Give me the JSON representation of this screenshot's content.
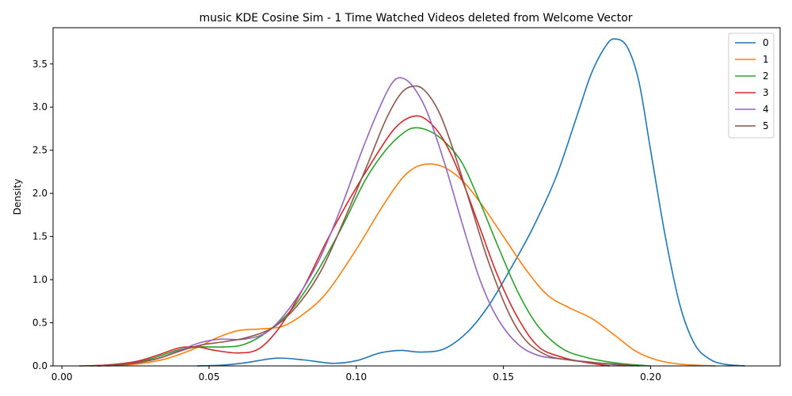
{
  "chart_data": {
    "type": "line",
    "title": "music KDE Cosine Sim - 1 Time Watched Videos deleted from Welcome Vector",
    "xlabel": "",
    "ylabel": "Density",
    "xlim": [
      -0.003,
      0.244
    ],
    "ylim": [
      0,
      3.92
    ],
    "x_ticks": [
      0.0,
      0.05,
      0.1,
      0.15,
      0.2
    ],
    "x_tick_labels": [
      "0.00",
      "0.05",
      "0.10",
      "0.15",
      "0.20"
    ],
    "y_ticks": [
      0.0,
      0.5,
      1.0,
      1.5,
      2.0,
      2.5,
      3.0,
      3.5
    ],
    "y_tick_labels": [
      "0.0",
      "0.5",
      "1.0",
      "1.5",
      "2.0",
      "2.5",
      "3.0",
      "3.5"
    ],
    "grid": false,
    "legend_position": "top-right",
    "series": [
      {
        "name": "0",
        "color": "#1f77b4",
        "points": [
          [
            0.046,
            0.0
          ],
          [
            0.055,
            0.01
          ],
          [
            0.063,
            0.04
          ],
          [
            0.073,
            0.09
          ],
          [
            0.082,
            0.07
          ],
          [
            0.092,
            0.03
          ],
          [
            0.1,
            0.06
          ],
          [
            0.108,
            0.15
          ],
          [
            0.115,
            0.18
          ],
          [
            0.122,
            0.16
          ],
          [
            0.13,
            0.2
          ],
          [
            0.138,
            0.4
          ],
          [
            0.145,
            0.7
          ],
          [
            0.152,
            1.1
          ],
          [
            0.16,
            1.6
          ],
          [
            0.168,
            2.2
          ],
          [
            0.175,
            2.9
          ],
          [
            0.18,
            3.4
          ],
          [
            0.185,
            3.72
          ],
          [
            0.188,
            3.79
          ],
          [
            0.192,
            3.7
          ],
          [
            0.196,
            3.3
          ],
          [
            0.2,
            2.5
          ],
          [
            0.205,
            1.5
          ],
          [
            0.21,
            0.7
          ],
          [
            0.215,
            0.25
          ],
          [
            0.22,
            0.08
          ],
          [
            0.225,
            0.02
          ],
          [
            0.232,
            0.0
          ]
        ]
      },
      {
        "name": "1",
        "color": "#ff7f0e",
        "points": [
          [
            0.015,
            0.0
          ],
          [
            0.025,
            0.02
          ],
          [
            0.035,
            0.08
          ],
          [
            0.045,
            0.2
          ],
          [
            0.053,
            0.33
          ],
          [
            0.06,
            0.41
          ],
          [
            0.068,
            0.43
          ],
          [
            0.075,
            0.46
          ],
          [
            0.082,
            0.6
          ],
          [
            0.09,
            0.85
          ],
          [
            0.1,
            1.35
          ],
          [
            0.108,
            1.8
          ],
          [
            0.115,
            2.15
          ],
          [
            0.12,
            2.3
          ],
          [
            0.125,
            2.34
          ],
          [
            0.13,
            2.3
          ],
          [
            0.136,
            2.15
          ],
          [
            0.142,
            1.9
          ],
          [
            0.15,
            1.5
          ],
          [
            0.158,
            1.1
          ],
          [
            0.165,
            0.82
          ],
          [
            0.172,
            0.68
          ],
          [
            0.18,
            0.55
          ],
          [
            0.188,
            0.35
          ],
          [
            0.195,
            0.17
          ],
          [
            0.202,
            0.07
          ],
          [
            0.21,
            0.02
          ],
          [
            0.222,
            0.0
          ]
        ]
      },
      {
        "name": "2",
        "color": "#2ca02c",
        "points": [
          [
            0.01,
            0.0
          ],
          [
            0.02,
            0.02
          ],
          [
            0.03,
            0.08
          ],
          [
            0.04,
            0.19
          ],
          [
            0.047,
            0.22
          ],
          [
            0.055,
            0.22
          ],
          [
            0.062,
            0.25
          ],
          [
            0.07,
            0.4
          ],
          [
            0.078,
            0.65
          ],
          [
            0.086,
            1.05
          ],
          [
            0.095,
            1.6
          ],
          [
            0.103,
            2.15
          ],
          [
            0.11,
            2.5
          ],
          [
            0.116,
            2.7
          ],
          [
            0.12,
            2.76
          ],
          [
            0.125,
            2.72
          ],
          [
            0.13,
            2.6
          ],
          [
            0.136,
            2.35
          ],
          [
            0.142,
            1.9
          ],
          [
            0.148,
            1.4
          ],
          [
            0.155,
            0.85
          ],
          [
            0.162,
            0.45
          ],
          [
            0.17,
            0.2
          ],
          [
            0.178,
            0.1
          ],
          [
            0.185,
            0.05
          ],
          [
            0.192,
            0.02
          ],
          [
            0.2,
            0.0
          ]
        ]
      },
      {
        "name": "3",
        "color": "#d62728",
        "points": [
          [
            0.006,
            0.0
          ],
          [
            0.015,
            0.01
          ],
          [
            0.025,
            0.05
          ],
          [
            0.033,
            0.13
          ],
          [
            0.04,
            0.21
          ],
          [
            0.046,
            0.22
          ],
          [
            0.052,
            0.18
          ],
          [
            0.06,
            0.15
          ],
          [
            0.067,
            0.2
          ],
          [
            0.074,
            0.45
          ],
          [
            0.082,
            0.9
          ],
          [
            0.09,
            1.45
          ],
          [
            0.098,
            1.95
          ],
          [
            0.106,
            2.4
          ],
          [
            0.113,
            2.75
          ],
          [
            0.119,
            2.89
          ],
          [
            0.124,
            2.85
          ],
          [
            0.13,
            2.6
          ],
          [
            0.136,
            2.15
          ],
          [
            0.142,
            1.6
          ],
          [
            0.148,
            1.05
          ],
          [
            0.155,
            0.55
          ],
          [
            0.162,
            0.22
          ],
          [
            0.17,
            0.1
          ],
          [
            0.178,
            0.04
          ],
          [
            0.186,
            0.0
          ]
        ]
      },
      {
        "name": "4",
        "color": "#9467bd",
        "points": [
          [
            0.012,
            0.0
          ],
          [
            0.022,
            0.02
          ],
          [
            0.032,
            0.08
          ],
          [
            0.04,
            0.18
          ],
          [
            0.047,
            0.27
          ],
          [
            0.054,
            0.31
          ],
          [
            0.062,
            0.31
          ],
          [
            0.07,
            0.4
          ],
          [
            0.078,
            0.7
          ],
          [
            0.087,
            1.2
          ],
          [
            0.095,
            1.85
          ],
          [
            0.102,
            2.5
          ],
          [
            0.108,
            3.0
          ],
          [
            0.112,
            3.27
          ],
          [
            0.115,
            3.34
          ],
          [
            0.119,
            3.25
          ],
          [
            0.124,
            2.95
          ],
          [
            0.13,
            2.35
          ],
          [
            0.136,
            1.65
          ],
          [
            0.142,
            1.0
          ],
          [
            0.148,
            0.55
          ],
          [
            0.155,
            0.25
          ],
          [
            0.162,
            0.12
          ],
          [
            0.17,
            0.08
          ],
          [
            0.178,
            0.05
          ],
          [
            0.186,
            0.02
          ],
          [
            0.194,
            0.0
          ]
        ]
      },
      {
        "name": "5",
        "color": "#8c564b",
        "points": [
          [
            0.012,
            0.0
          ],
          [
            0.022,
            0.02
          ],
          [
            0.032,
            0.08
          ],
          [
            0.04,
            0.17
          ],
          [
            0.047,
            0.24
          ],
          [
            0.055,
            0.28
          ],
          [
            0.063,
            0.33
          ],
          [
            0.072,
            0.45
          ],
          [
            0.08,
            0.7
          ],
          [
            0.088,
            1.1
          ],
          [
            0.096,
            1.7
          ],
          [
            0.104,
            2.35
          ],
          [
            0.11,
            2.85
          ],
          [
            0.115,
            3.15
          ],
          [
            0.119,
            3.24
          ],
          [
            0.123,
            3.2
          ],
          [
            0.128,
            2.95
          ],
          [
            0.133,
            2.5
          ],
          [
            0.139,
            1.85
          ],
          [
            0.145,
            1.2
          ],
          [
            0.152,
            0.6
          ],
          [
            0.158,
            0.28
          ],
          [
            0.165,
            0.12
          ],
          [
            0.172,
            0.07
          ],
          [
            0.18,
            0.04
          ],
          [
            0.188,
            0.02
          ],
          [
            0.196,
            0.0
          ]
        ]
      }
    ]
  }
}
